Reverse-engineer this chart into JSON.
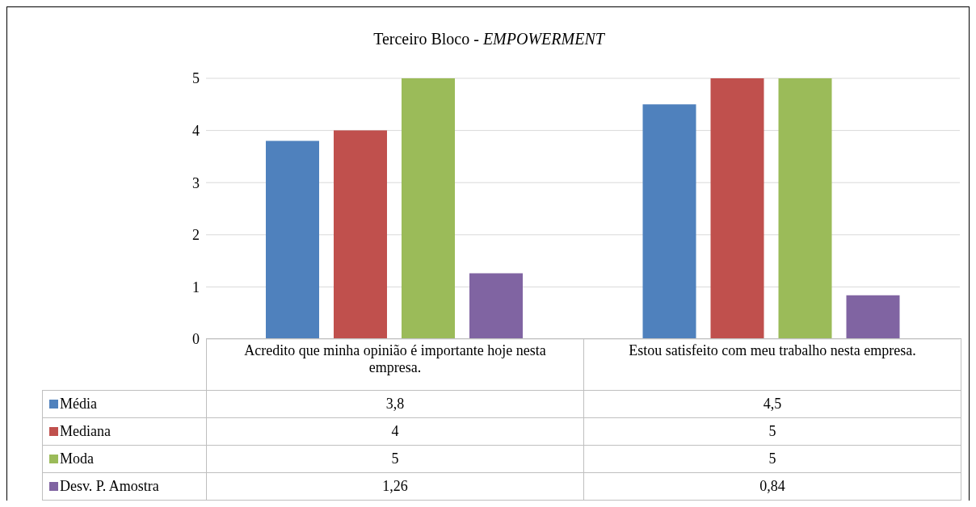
{
  "chart_data": {
    "type": "bar",
    "title": "Terceiro Bloco - EMPOWERMENT",
    "categories": [
      "Acredito que minha opinião é importante hoje nesta empresa.",
      "Estou satisfeito com meu trabalho nesta empresa."
    ],
    "series": [
      {
        "name": "Média",
        "color": "#4f81bd",
        "values": [
          3.8,
          4.5
        ],
        "value_labels": [
          "3,8",
          "4,5"
        ]
      },
      {
        "name": "Mediana",
        "color": "#c0504d",
        "values": [
          4,
          5
        ],
        "value_labels": [
          "4",
          "5"
        ]
      },
      {
        "name": "Moda",
        "color": "#9bbb59",
        "values": [
          5,
          5
        ],
        "value_labels": [
          "5",
          "5"
        ]
      },
      {
        "name": "Desv. P. Amostra",
        "color": "#8064a2",
        "values": [
          1.26,
          0.84
        ],
        "value_labels": [
          "1,26",
          "0,84"
        ]
      }
    ],
    "ylim": [
      0,
      5
    ],
    "yticks": [
      0,
      1,
      2,
      3,
      4,
      5
    ],
    "grid": "y",
    "legend": "bottom"
  }
}
